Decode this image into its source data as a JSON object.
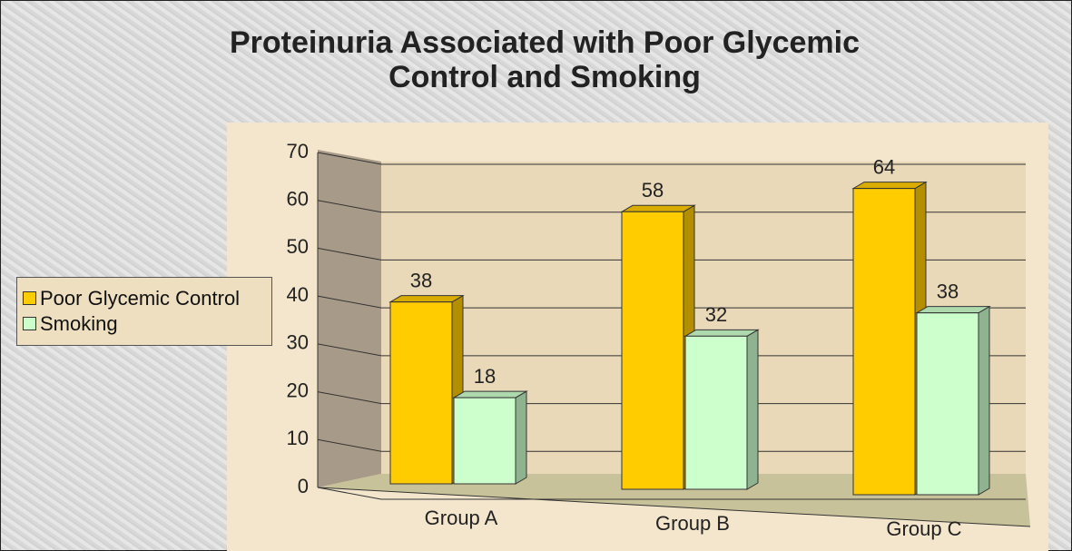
{
  "chart_data": {
    "type": "bar3d",
    "title": "Proteinuria Associated with Poor Glycemic Control and Smoking",
    "categories": [
      "Group A",
      "Group B",
      "Group C"
    ],
    "series": [
      {
        "name": "Poor Glycemic Control",
        "color": "#ffcc00",
        "values": [
          38,
          58,
          64
        ]
      },
      {
        "name": "Smoking",
        "color": "#ccffcc",
        "values": [
          18,
          32,
          38
        ]
      }
    ],
    "ylim": [
      0,
      70
    ],
    "yticks": [
      0,
      10,
      20,
      30,
      40,
      50,
      60,
      70
    ],
    "grid": true,
    "legend": "left"
  }
}
